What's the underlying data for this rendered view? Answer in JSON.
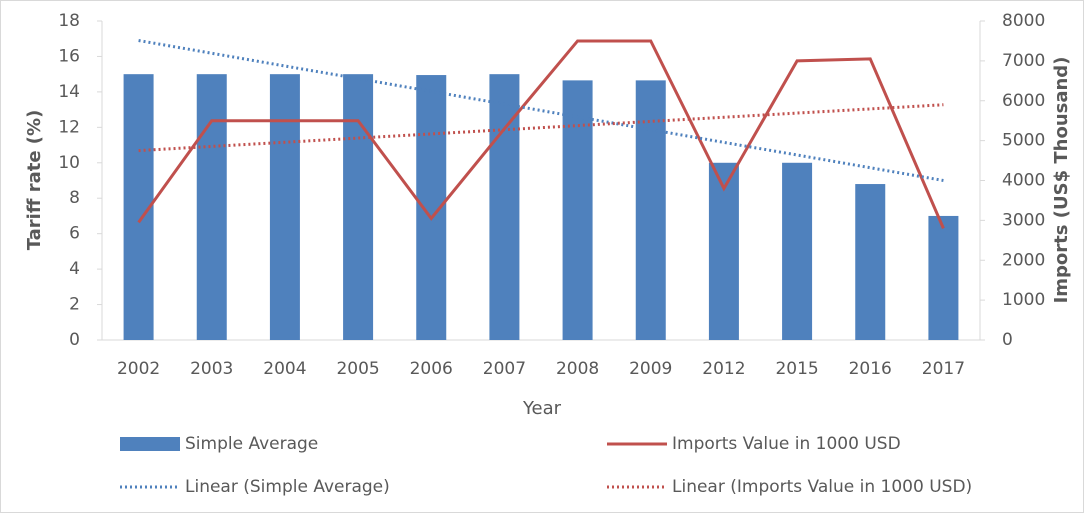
{
  "chart_data": {
    "type": "bar-line",
    "x_label": "Year",
    "y_label": "Tariff rate (%)",
    "y2_label": "Imports (US$ Thousand)",
    "categories": [
      "2002",
      "2003",
      "2004",
      "2005",
      "2006",
      "2007",
      "2008",
      "2009",
      "2012",
      "2015",
      "2016",
      "2017"
    ],
    "ylim": [
      0,
      18
    ],
    "yticks": [
      0,
      2,
      4,
      6,
      8,
      10,
      12,
      14,
      16,
      18
    ],
    "y2lim": [
      0,
      8000
    ],
    "y2ticks": [
      0,
      1000,
      2000,
      3000,
      4000,
      5000,
      6000,
      7000,
      8000
    ],
    "series": [
      {
        "name": "Simple Average",
        "kind": "bar",
        "color": "#4f81bd",
        "values": [
          15,
          15,
          15,
          15,
          14.95,
          15,
          14.65,
          14.65,
          10,
          10,
          8.8,
          7
        ]
      },
      {
        "name": "Imports Value in 1000 USD",
        "kind": "line",
        "axis": "y2",
        "color": "#c0504d",
        "values": [
          2950,
          5500,
          5500,
          5500,
          3050,
          5300,
          7500,
          7500,
          3800,
          7000,
          7050,
          2800
        ]
      },
      {
        "name": "Linear (Simple Average)",
        "kind": "trend",
        "color": "#4f81bd",
        "values": [
          16.9,
          16.18,
          15.46,
          14.75,
          14.03,
          13.31,
          12.59,
          11.87,
          11.15,
          10.44,
          9.72,
          9.0
        ]
      },
      {
        "name": "Linear (Imports Value in 1000 USD)",
        "kind": "trend",
        "axis": "y2",
        "color": "#c0504d",
        "values": [
          4750,
          4855,
          4959,
          5064,
          5168,
          5273,
          5377,
          5482,
          5586,
          5691,
          5795,
          5900
        ]
      }
    ]
  }
}
